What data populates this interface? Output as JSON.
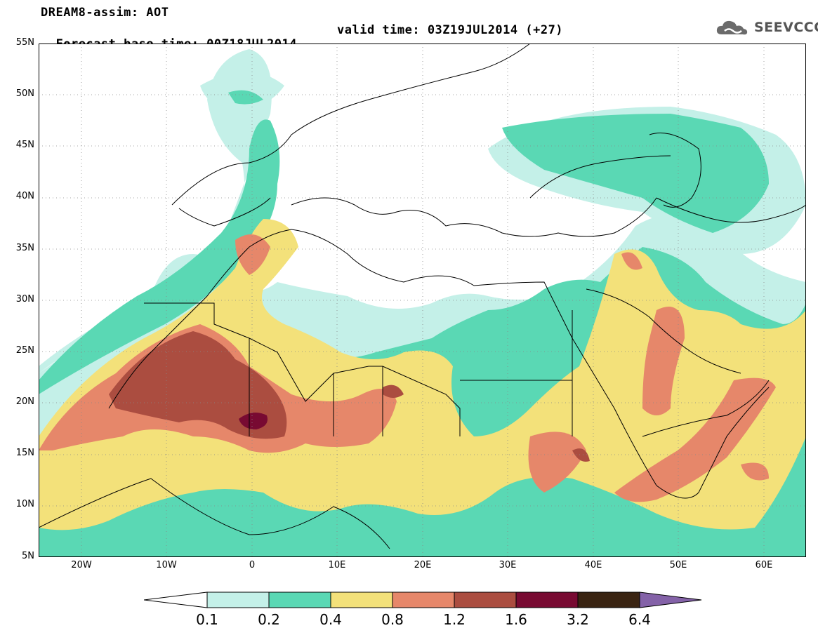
{
  "header": {
    "title_line1": "DREAM8-assim: AOT",
    "base_time": "Forecast base time: 00Z18JUL2014",
    "valid_time": "valid time: 03Z19JUL2014 (+27)"
  },
  "logo": {
    "text": "SEEVCCC",
    "icon": "cloud-icon",
    "color": "#555555"
  },
  "map": {
    "region": "North Africa, Europe and Middle East",
    "lat_labels": [
      "55N",
      "50N",
      "45N",
      "40N",
      "35N",
      "30N",
      "25N",
      "20N",
      "15N",
      "10N",
      "5N"
    ],
    "lon_labels": [
      "20W",
      "10W",
      "0",
      "10E",
      "20E",
      "30E",
      "40E",
      "50E",
      "60E"
    ],
    "lat_range": [
      5,
      55
    ],
    "lon_range": [
      -25,
      65
    ],
    "gridlines": "dotted"
  },
  "colorbar": {
    "levels": [
      "0.1",
      "0.2",
      "0.4",
      "0.8",
      "1.2",
      "1.6",
      "3.2",
      "6.4"
    ],
    "colors": {
      "below": "#ffffff",
      "c1": "#c4f0e8",
      "c2": "#5ad8b4",
      "c3": "#f3e17a",
      "c4": "#e6876a",
      "c5": "#ab4d40",
      "c6": "#780a32",
      "c7": "#3a2412",
      "above": "#8462a8"
    }
  }
}
